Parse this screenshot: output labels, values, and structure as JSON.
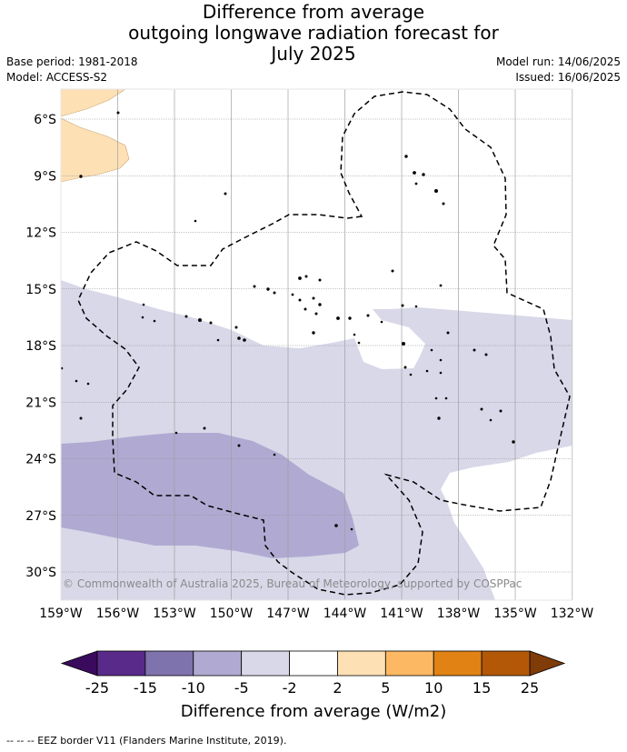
{
  "title": {
    "line1": "Difference from average",
    "line2": "outgoing longwave radiation forecast for",
    "line3": "July 2025"
  },
  "meta": {
    "base_period": "Base period: 1981-2018",
    "model": "Model: ACCESS-S2",
    "model_run": "Model run: 14/06/2025",
    "issued": "Issued: 16/06/2025"
  },
  "axes": {
    "lat_labels": [
      "6°S",
      "9°S",
      "12°S",
      "15°S",
      "18°S",
      "21°S",
      "24°S",
      "27°S",
      "30°S"
    ],
    "lon_labels": [
      "159°W",
      "156°W",
      "153°W",
      "150°W",
      "147°W",
      "144°W",
      "141°W",
      "138°W",
      "135°W",
      "132°W"
    ]
  },
  "copyright": "© Commonwealth of Australia 2025, Bureau of Meteorology, supported by COSPPac",
  "colorbar": {
    "title": "Difference from average (W/m2)",
    "labels": [
      "-25",
      "-15",
      "-10",
      "-5",
      "-2",
      "2",
      "5",
      "10",
      "15",
      "25"
    ],
    "colors": {
      "below": "#3a0b5c",
      "b1": "#5a2a8a",
      "b2": "#7f73ad",
      "b3": "#b0aad2",
      "b4": "#d8d8e9",
      "b5": "#ffffff",
      "b6": "#fde0b4",
      "b7": "#fdb863",
      "b8": "#e08214",
      "b9": "#b35806",
      "above": "#7f3b08"
    }
  },
  "footnote": "--  --  -- EEZ border V11 (Flanders Marine Institute, 2019)."
}
